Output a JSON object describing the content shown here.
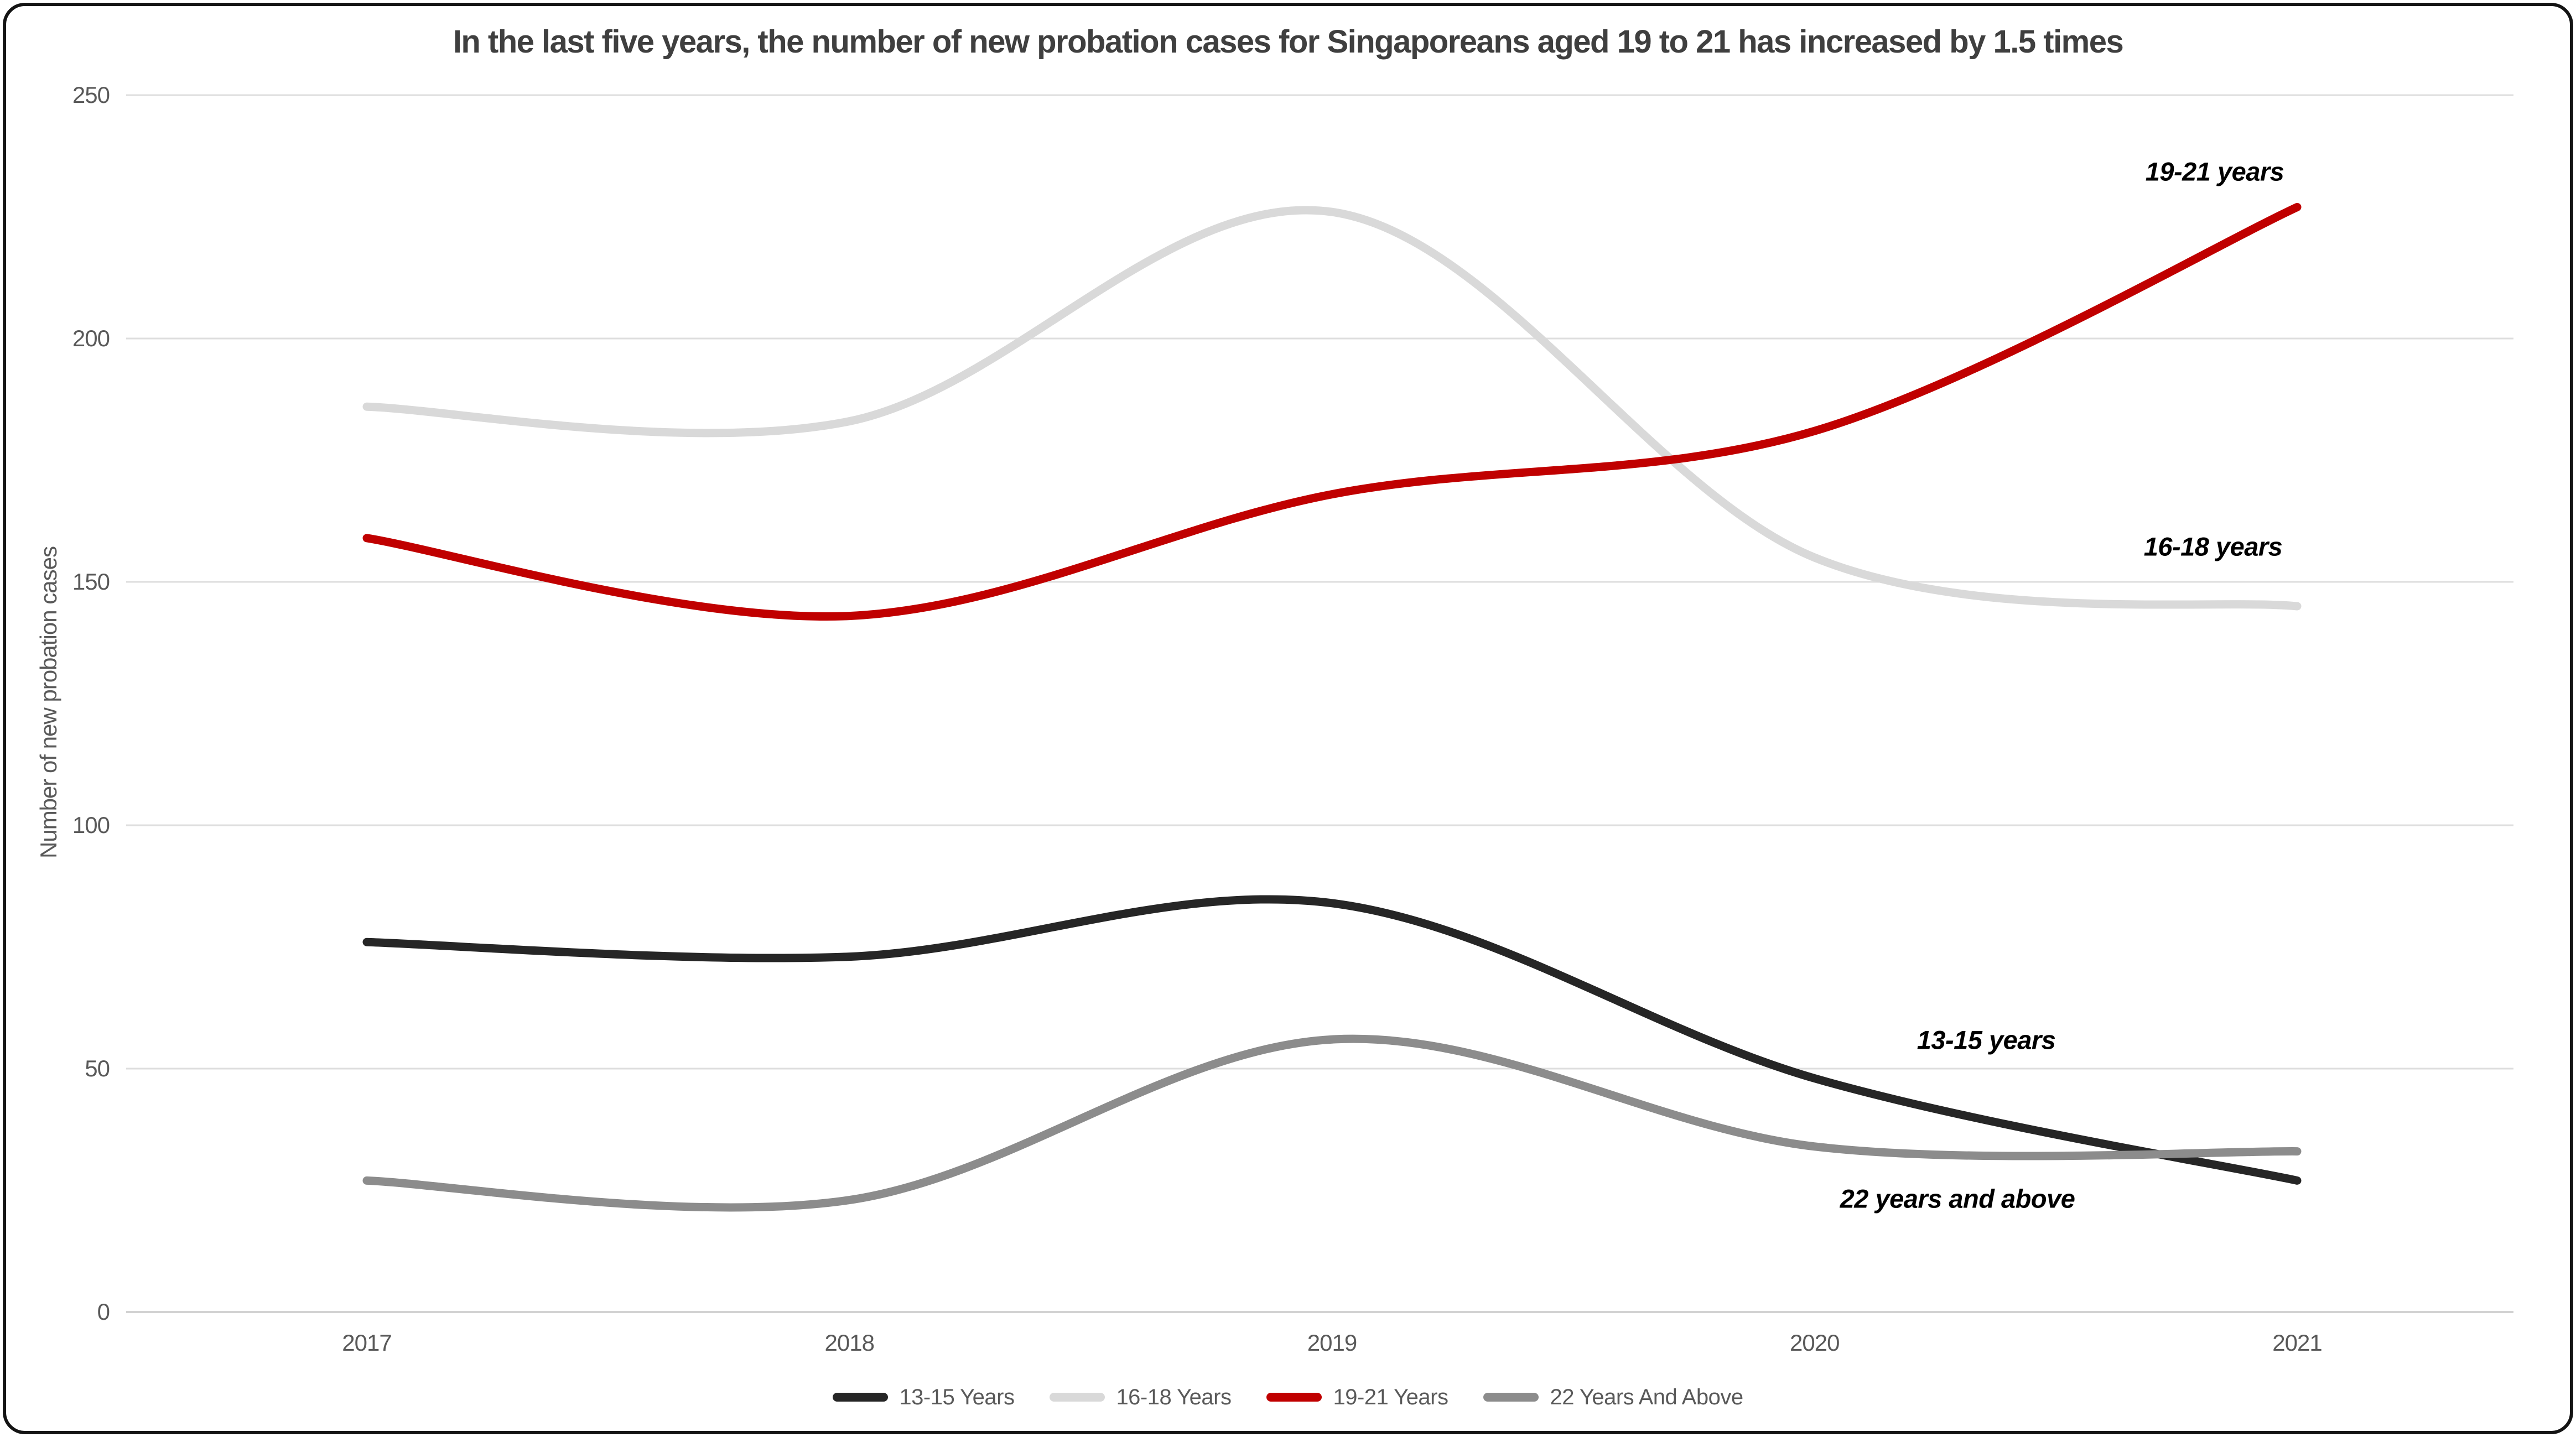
{
  "title": "In the last five years, the number of new probation cases for Singaporeans aged 19 to 21 has increased by 1.5 times",
  "y_axis": {
    "label": "Number of new probation cases",
    "ticks": [
      250,
      200,
      150,
      100,
      50,
      0
    ]
  },
  "x_axis": {
    "ticks": [
      "2017",
      "2018",
      "2019",
      "2020",
      "2021"
    ]
  },
  "legend": [
    {
      "label": "13-15 Years",
      "color": "#262626"
    },
    {
      "label": "16-18 Years",
      "color": "#D9D9D9"
    },
    {
      "label": "19-21 Years",
      "color": "#C00000"
    },
    {
      "label": "22 Years And Above",
      "color": "#8C8C8C"
    }
  ],
  "colors": {
    "gridline": "#DEDEDE",
    "zero_line": "#D2D2D2",
    "title_text": "#3F3F3F",
    "axis_text": "#595959",
    "annotation_text": "#000000",
    "accent_red": "#C00000"
  },
  "chart_data": {
    "type": "line",
    "smooth": true,
    "grid": "horizontal",
    "legend_position": "bottom",
    "x": [
      2017,
      2018,
      2019,
      2020,
      2021
    ],
    "categories": [
      "2017",
      "2018",
      "2019",
      "2020",
      "2021"
    ],
    "ylim": [
      0,
      250
    ],
    "xlabel": "",
    "ylabel": "Number of new probation cases",
    "series": [
      {
        "name": "13-15 Years",
        "color": "#262626",
        "values": [
          76,
          73,
          84,
          48,
          27
        ]
      },
      {
        "name": "16-18 Years",
        "color": "#D9D9D9",
        "values": [
          186,
          183,
          226,
          155,
          145
        ]
      },
      {
        "name": "19-21 Years",
        "color": "#C00000",
        "values": [
          159,
          143,
          168,
          181,
          227
        ]
      },
      {
        "name": "22 Years And Above",
        "color": "#8C8C8C",
        "values": [
          27,
          23,
          56,
          34,
          33
        ]
      }
    ],
    "annotations": [
      {
        "text": "19-21 years",
        "x": 4003,
        "y": 310
      },
      {
        "text": "16-18 years",
        "x": 4000,
        "y": 988
      },
      {
        "text": "13-15 years",
        "x": 3590,
        "y": 1880
      },
      {
        "text": "22 years and above",
        "x": 3538,
        "y": 2167
      }
    ]
  }
}
